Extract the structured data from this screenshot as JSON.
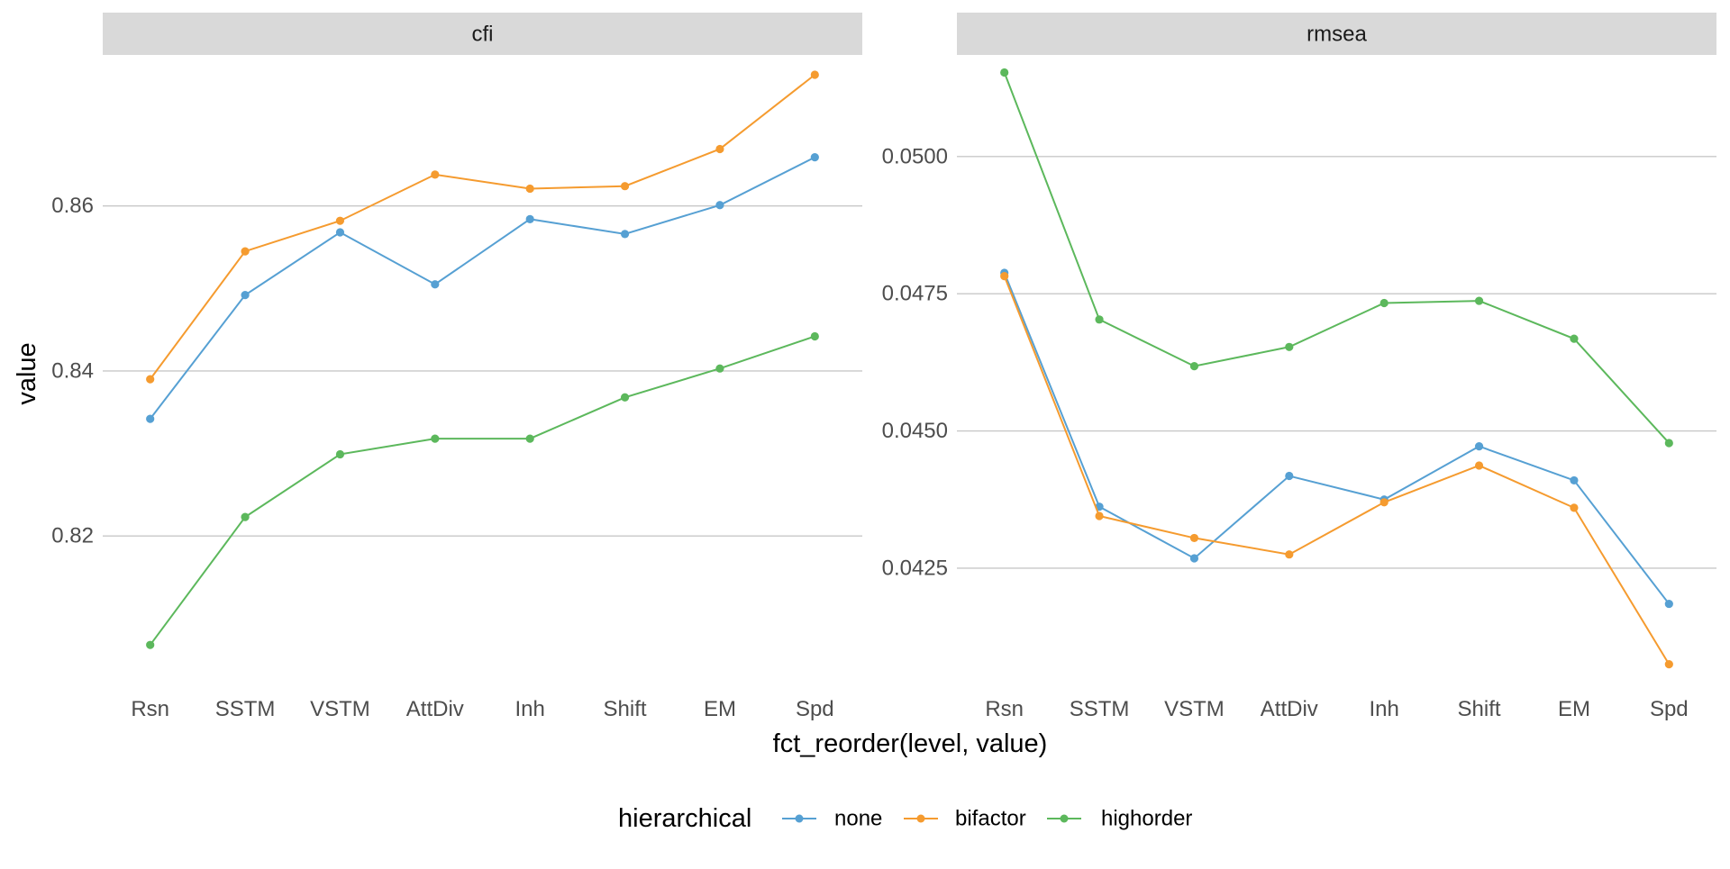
{
  "chart_data": {
    "type": "line",
    "xlabel": "fct_reorder(level, value)",
    "ylabel": "value",
    "categories": [
      "Rsn",
      "SSTM",
      "VSTM",
      "AttDiv",
      "Inh",
      "Shift",
      "EM",
      "Spd"
    ],
    "legend": {
      "title": "hierarchical",
      "position": "bottom",
      "entries": [
        "none",
        "bifactor",
        "highorder"
      ]
    },
    "colors": {
      "none": "#56a0d3",
      "bifactor": "#f59b2f",
      "highorder": "#5cb85c"
    },
    "grid": true,
    "panels": [
      {
        "strip": "cfi",
        "ylim": [
          0.8018,
          0.8783
        ],
        "yticks": [
          0.82,
          0.84,
          0.86
        ],
        "ytick_labels": [
          "0.82",
          "0.84",
          "0.86"
        ],
        "series": [
          {
            "name": "none",
            "values": [
              0.8342,
              0.8492,
              0.8568,
              0.8505,
              0.8584,
              0.8566,
              0.8601,
              0.8659
            ]
          },
          {
            "name": "bifactor",
            "values": [
              0.839,
              0.8545,
              0.8582,
              0.8638,
              0.8621,
              0.8624,
              0.8669,
              0.8759
            ]
          },
          {
            "name": "highorder",
            "values": [
              0.8068,
              0.8223,
              0.8299,
              0.8318,
              0.8318,
              0.8368,
              0.8403,
              0.8442
            ]
          }
        ]
      },
      {
        "strip": "rmsea",
        "ylim": [
          0.04035,
          0.05185
        ],
        "yticks": [
          0.0425,
          0.045,
          0.0475,
          0.05
        ],
        "ytick_labels": [
          "0.0425",
          "0.0450",
          "0.0475",
          "0.0500"
        ],
        "series": [
          {
            "name": "none",
            "values": [
              0.04788,
              0.04362,
              0.04268,
              0.04418,
              0.04375,
              0.04472,
              0.0441,
              0.04185
            ]
          },
          {
            "name": "bifactor",
            "values": [
              0.04782,
              0.04345,
              0.04305,
              0.04275,
              0.0437,
              0.04437,
              0.0436,
              0.04075
            ]
          },
          {
            "name": "highorder",
            "values": [
              0.05153,
              0.04703,
              0.04618,
              0.04653,
              0.04733,
              0.04737,
              0.04668,
              0.04478
            ]
          }
        ]
      }
    ]
  }
}
